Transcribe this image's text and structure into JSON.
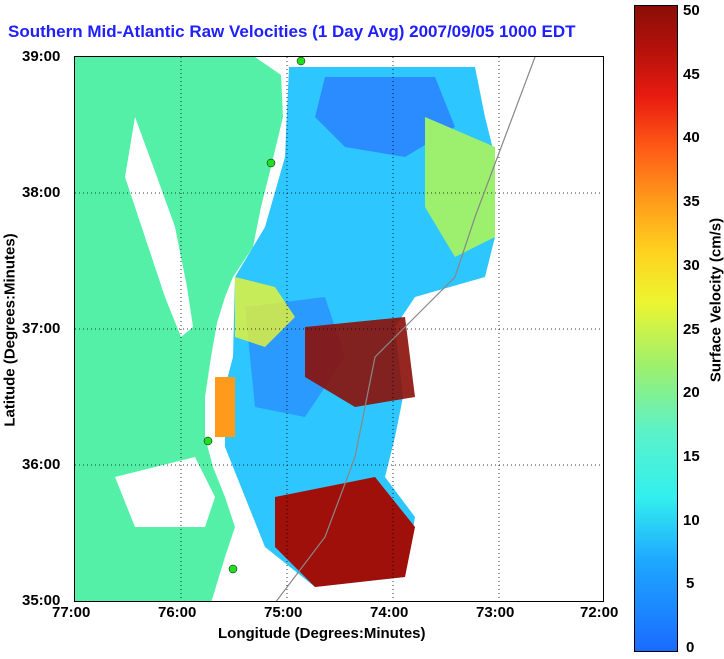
{
  "title": "Southern Mid-Atlantic Raw Velocities (1 Day Avg) 2007/09/05 1000 EDT",
  "axes": {
    "xlabel": "Longitude (Degrees:Minutes)",
    "ylabel": "Latitude (Degrees:Minutes)",
    "xticks": [
      "77:00",
      "76:00",
      "75:00",
      "74:00",
      "73:00",
      "72:00"
    ],
    "yticks": [
      "39:00",
      "38:00",
      "37:00",
      "36:00",
      "35:00"
    ]
  },
  "colorbar": {
    "label": "Surface Velocity (cm/s)",
    "ticks": [
      "50",
      "45",
      "40",
      "35",
      "30",
      "25",
      "20",
      "15",
      "10",
      "5",
      "0"
    ]
  },
  "colors": {
    "land": "#55f0a8",
    "title": "#1f1fff",
    "station": "#22dd22"
  }
}
